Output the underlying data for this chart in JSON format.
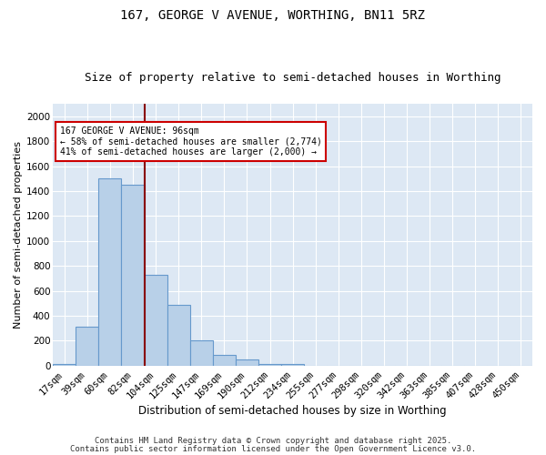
{
  "title1": "167, GEORGE V AVENUE, WORTHING, BN11 5RZ",
  "title2": "Size of property relative to semi-detached houses in Worthing",
  "xlabel": "Distribution of semi-detached houses by size in Worthing",
  "ylabel": "Number of semi-detached properties",
  "footnote1": "Contains HM Land Registry data © Crown copyright and database right 2025.",
  "footnote2": "Contains public sector information licensed under the Open Government Licence v3.0.",
  "bar_labels": [
    "17sqm",
    "39sqm",
    "60sqm",
    "82sqm",
    "104sqm",
    "125sqm",
    "147sqm",
    "169sqm",
    "190sqm",
    "212sqm",
    "234sqm",
    "255sqm",
    "277sqm",
    "298sqm",
    "320sqm",
    "342sqm",
    "363sqm",
    "385sqm",
    "407sqm",
    "428sqm",
    "450sqm"
  ],
  "bar_values": [
    15,
    310,
    1500,
    1450,
    725,
    485,
    200,
    90,
    50,
    15,
    15,
    0,
    0,
    0,
    0,
    0,
    0,
    0,
    0,
    0,
    0
  ],
  "bar_color": "#b8d0e8",
  "bar_edgecolor": "#6699cc",
  "bar_linewidth": 0.8,
  "vline_x_index": 4,
  "vline_color": "#880000",
  "annotation_title": "167 GEORGE V AVENUE: 96sqm",
  "annotation_line1": "← 58% of semi-detached houses are smaller (2,774)",
  "annotation_line2": "41% of semi-detached houses are larger (2,000) →",
  "annotation_box_color": "#ffffff",
  "annotation_box_edgecolor": "#cc0000",
  "ylim": [
    0,
    2100
  ],
  "yticks": [
    0,
    200,
    400,
    600,
    800,
    1000,
    1200,
    1400,
    1600,
    1800,
    2000
  ],
  "bg_color": "#dde8f4",
  "grid_color": "#ffffff",
  "fig_bg_color": "#ffffff",
  "title1_fontsize": 10,
  "title2_fontsize": 9,
  "xlabel_fontsize": 8.5,
  "ylabel_fontsize": 8,
  "tick_fontsize": 7.5,
  "footnote_fontsize": 6.5
}
